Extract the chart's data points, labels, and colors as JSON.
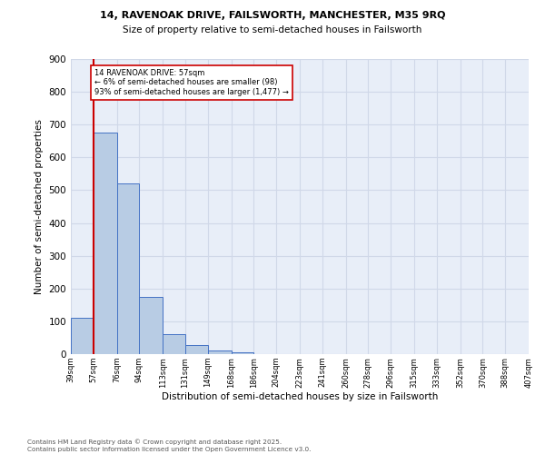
{
  "title1": "14, RAVENOAK DRIVE, FAILSWORTH, MANCHESTER, M35 9RQ",
  "title2": "Size of property relative to semi-detached houses in Failsworth",
  "xlabel": "Distribution of semi-detached houses by size in Failsworth",
  "ylabel": "Number of semi-detached properties",
  "annotation_title": "14 RAVENOAK DRIVE: 57sqm",
  "annotation_line1": "← 6% of semi-detached houses are smaller (98)",
  "annotation_line2": "93% of semi-detached houses are larger (1,477) →",
  "property_size_sqm": 57,
  "bin_edges": [
    39,
    57,
    76,
    94,
    113,
    131,
    149,
    168,
    186,
    204,
    223,
    241,
    260,
    278,
    296,
    315,
    333,
    352,
    370,
    388,
    407
  ],
  "bar_heights": [
    110,
    675,
    520,
    175,
    60,
    28,
    12,
    5,
    0,
    0,
    0,
    0,
    0,
    0,
    0,
    0,
    0,
    0,
    0,
    0
  ],
  "bar_color": "#b8cce4",
  "bar_edge_color": "#4472c4",
  "property_line_color": "#cc0000",
  "annotation_box_color": "#cc0000",
  "grid_color": "#d0d8e8",
  "bg_color": "#e8eef8",
  "ylim": [
    0,
    900
  ],
  "yticks": [
    0,
    100,
    200,
    300,
    400,
    500,
    600,
    700,
    800,
    900
  ],
  "footnote1": "Contains HM Land Registry data © Crown copyright and database right 2025.",
  "footnote2": "Contains public sector information licensed under the Open Government Licence v3.0."
}
